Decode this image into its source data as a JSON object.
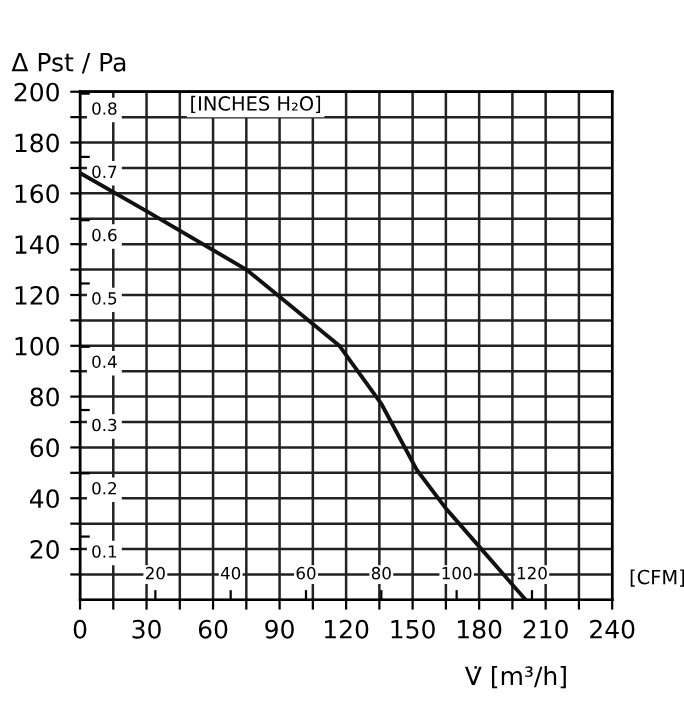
{
  "chart_data": {
    "type": "line",
    "xlabel": "V̇ [m³/h]",
    "ylabel": "Δ Pst / Pa",
    "y2label": "[INCHES H₂O]",
    "x2label": "[CFM]",
    "series": [
      {
        "color": "#111111",
        "x": [
          0,
          30,
          75,
          117,
          136,
          152,
          165,
          183,
          201
        ],
        "values": [
          168,
          153,
          130,
          100,
          77,
          51,
          36,
          18,
          0
        ]
      }
    ],
    "xlim": [
      0,
      240
    ],
    "ylim": [
      0,
      200
    ],
    "xticks": [
      0,
      {
        "value": 15,
        "label": null
      },
      30,
      {
        "value": 45,
        "label": null
      },
      60,
      {
        "value": 75,
        "label": null
      },
      90,
      {
        "value": 105,
        "label": null
      },
      120,
      {
        "value": 135,
        "label": null
      },
      150,
      {
        "value": 165,
        "label": null
      },
      180,
      {
        "value": 195,
        "label": null
      },
      210,
      {
        "value": 225,
        "label": null
      },
      240
    ],
    "yticks": [
      {
        "value": 10,
        "label": null
      },
      20,
      {
        "value": 30,
        "label": null
      },
      40,
      {
        "value": 50,
        "label": null
      },
      60,
      {
        "value": 70,
        "label": null
      },
      80,
      {
        "value": 90,
        "label": null
      },
      100,
      {
        "value": 110,
        "label": null
      },
      120,
      {
        "value": 130,
        "label": null
      },
      140,
      {
        "value": 150,
        "label": null
      },
      160,
      {
        "value": 170,
        "label": null
      },
      180,
      {
        "value": 190,
        "label": null
      },
      200
    ],
    "y2lim": [
      0,
      0.803
    ],
    "y2ticks": [
      {
        "value": 0.1,
        "label": "0.1"
      },
      {
        "value": 0.2,
        "label": "0.2"
      },
      {
        "value": 0.3,
        "label": "0.3"
      },
      {
        "value": 0.4,
        "label": "0.4"
      },
      {
        "value": 0.5,
        "label": "0.5"
      },
      {
        "value": 0.6,
        "label": "0.6"
      },
      {
        "value": 0.7,
        "label": "0.7"
      },
      {
        "value": 0.8,
        "label": "0.8"
      }
    ],
    "x2lim": [
      0,
      141.3
    ],
    "x2ticks": [
      20,
      40,
      60,
      80,
      100,
      120
    ],
    "grid": true,
    "line_style": "solid",
    "marker": "none"
  }
}
